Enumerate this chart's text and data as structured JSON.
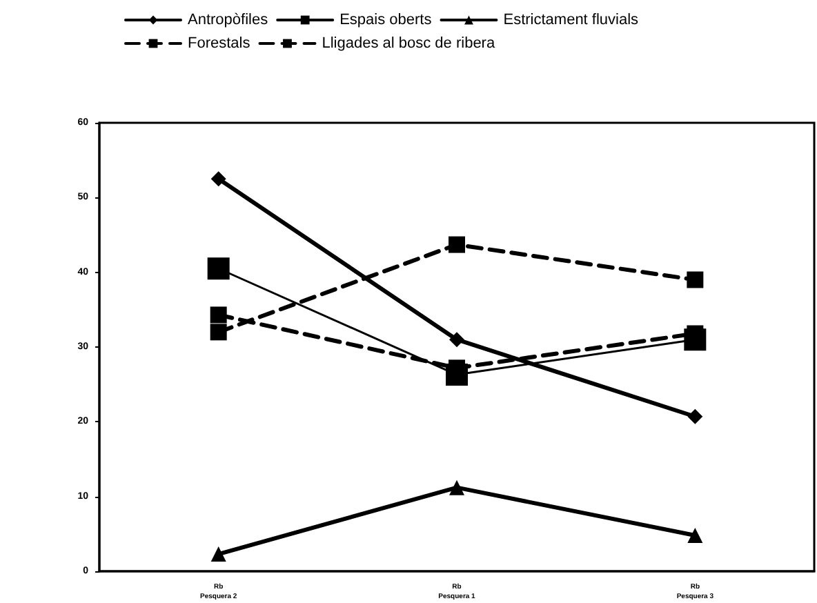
{
  "chart_data": {
    "type": "line",
    "categories": [
      "Rb\nPesquera 2",
      "Rb\nPesquera 1",
      "Rb\nPesquera 3"
    ],
    "series": [
      {
        "name": "Antropòfiles",
        "color": "#000000",
        "marker": "diamond",
        "line_style": "solid",
        "values": [
          52.5,
          31,
          20.7
        ]
      },
      {
        "name": "Espais oberts",
        "color": "#000000",
        "marker": "square",
        "line_style": "solid",
        "values": [
          40.5,
          26.3,
          31
        ]
      },
      {
        "name": "Estrictament fluvials",
        "color": "#000000",
        "marker": "triangle",
        "line_style": "solid",
        "values": [
          2.3,
          11.2,
          4.8
        ]
      },
      {
        "name": "Forestals",
        "color": "#000000",
        "marker": "square",
        "line_style": "dashed",
        "values": [
          32,
          43.7,
          39
        ]
      },
      {
        "name": "Lligades al bosc de ribera",
        "color": "#000000",
        "marker": "square",
        "line_style": "dashed",
        "values": [
          34.3,
          27.2,
          31.8
        ]
      }
    ],
    "ylim": [
      0,
      60
    ],
    "yticks": [
      0,
      10,
      20,
      30,
      40,
      50,
      60
    ],
    "grid": false,
    "legend": "top"
  }
}
